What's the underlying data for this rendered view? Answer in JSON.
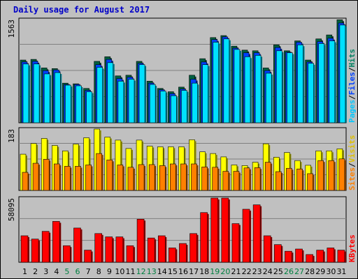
{
  "title": "Daily usage for August 2017",
  "colors": {
    "background": "#c0c0c0",
    "panel": "#c0c0c0",
    "pages": "#00e0ff",
    "files": "#0040ff",
    "hits": "#006040",
    "visits": "#ffff00",
    "sites": "#ff8000",
    "kbytes": "#ff0000",
    "weekend_day": "#008040",
    "weekday": "#000000",
    "title": "#0000c8"
  },
  "chart_data": [
    {
      "type": "bar",
      "panel": "hits-files-pages",
      "categories": [
        "1",
        "2",
        "3",
        "4",
        "5",
        "6",
        "7",
        "8",
        "9",
        "10",
        "11",
        "12",
        "13",
        "14",
        "15",
        "16",
        "17",
        "18",
        "19",
        "20",
        "21",
        "22",
        "23",
        "24",
        "25",
        "26",
        "27",
        "28",
        "29",
        "30",
        "31"
      ],
      "ymax_label": "1563",
      "ylim": [
        0,
        1563
      ],
      "grid": true,
      "series": [
        {
          "name": "Hits",
          "values": [
            950,
            960,
            830,
            820,
            600,
            590,
            520,
            930,
            1000,
            710,
            720,
            930,
            630,
            520,
            470,
            540,
            720,
            970,
            1290,
            1320,
            1160,
            1100,
            1090,
            830,
            1180,
            1090,
            1240,
            950,
            1270,
            1330,
            1560
          ]
        },
        {
          "name": "Files",
          "values": [
            920,
            930,
            790,
            800,
            580,
            580,
            490,
            880,
            960,
            670,
            690,
            900,
            600,
            500,
            440,
            510,
            660,
            920,
            1260,
            1300,
            1130,
            1060,
            1060,
            790,
            1140,
            1070,
            1220,
            920,
            1230,
            1280,
            1510
          ]
        },
        {
          "name": "Pages",
          "values": [
            890,
            890,
            740,
            760,
            570,
            560,
            470,
            840,
            910,
            630,
            660,
            880,
            580,
            480,
            410,
            490,
            600,
            880,
            1220,
            1270,
            1110,
            1000,
            1020,
            750,
            1090,
            1060,
            1180,
            900,
            1200,
            1240,
            1480
          ]
        }
      ]
    },
    {
      "type": "bar",
      "panel": "visits-sites",
      "categories": [
        "1",
        "2",
        "3",
        "4",
        "5",
        "6",
        "7",
        "8",
        "9",
        "10",
        "11",
        "12",
        "13",
        "14",
        "15",
        "16",
        "17",
        "18",
        "19",
        "20",
        "21",
        "22",
        "23",
        "24",
        "25",
        "26",
        "27",
        "28",
        "29",
        "30",
        "31"
      ],
      "ymax_label": "183",
      "ylim": [
        0,
        183
      ],
      "grid": true,
      "series": [
        {
          "name": "Visits",
          "values": [
            108,
            140,
            155,
            134,
            118,
            138,
            157,
            183,
            159,
            150,
            125,
            150,
            132,
            130,
            130,
            130,
            151,
            115,
            110,
            100,
            76,
            74,
            84,
            139,
            99,
            113,
            89,
            75,
            118,
            118,
            124
          ]
        },
        {
          "name": "Sites",
          "values": [
            54,
            81,
            93,
            79,
            72,
            72,
            76,
            110,
            91,
            76,
            69,
            77,
            77,
            74,
            79,
            79,
            79,
            70,
            69,
            57,
            57,
            67,
            68,
            84,
            56,
            66,
            64,
            50,
            89,
            89,
            94
          ]
        }
      ]
    },
    {
      "type": "bar",
      "panel": "kbytes",
      "categories": [
        "1",
        "2",
        "3",
        "4",
        "5",
        "6",
        "7",
        "8",
        "9",
        "10",
        "11",
        "12",
        "13",
        "14",
        "15",
        "16",
        "17",
        "18",
        "19",
        "20",
        "21",
        "22",
        "23",
        "24",
        "25",
        "26",
        "27",
        "28",
        "29",
        "30",
        "31"
      ],
      "ymax_label": "58095",
      "ylim": [
        0,
        58095
      ],
      "grid": true,
      "series": [
        {
          "name": "KBytes",
          "values": [
            24000,
            21000,
            28000,
            37000,
            15000,
            31000,
            11000,
            26000,
            23000,
            23000,
            15000,
            39000,
            22000,
            24000,
            13000,
            17000,
            26000,
            45000,
            60000,
            60000,
            35000,
            48000,
            52000,
            24000,
            16000,
            10000,
            12000,
            7000,
            11000,
            13000,
            11000
          ]
        }
      ]
    }
  ],
  "weekend_days": [
    "5",
    "6",
    "12",
    "13",
    "19",
    "20",
    "26",
    "27"
  ],
  "right_labels": {
    "panel1": [
      {
        "text": "Pages",
        "color": "#00c8ff"
      },
      {
        "text": "/",
        "color": "#000000"
      },
      {
        "text": "Files",
        "color": "#0040ff"
      },
      {
        "text": "/",
        "color": "#000000"
      },
      {
        "text": "Hits",
        "color": "#008060"
      }
    ],
    "panel2": [
      {
        "text": "Sites",
        "color": "#ff8000"
      },
      {
        "text": "/",
        "color": "#000000"
      },
      {
        "text": "Visits",
        "color": "#e0c000"
      }
    ],
    "panel3": [
      {
        "text": "KBytes",
        "color": "#ff0000"
      }
    ]
  }
}
